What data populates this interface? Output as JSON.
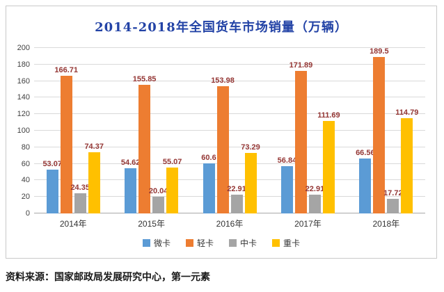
{
  "chart_data": {
    "type": "bar",
    "title": "2014-2018年全国货车市场销量（万辆）",
    "title_color": "#2343A6",
    "categories": [
      "2014年",
      "2015年",
      "2016年",
      "2017年",
      "2018年"
    ],
    "series": [
      {
        "name": "微卡",
        "color": "#5B9BD5",
        "values": [
          53.07,
          54.62,
          60.6,
          56.84,
          66.56
        ]
      },
      {
        "name": "轻卡",
        "color": "#ED7D31",
        "values": [
          166.71,
          155.85,
          153.98,
          171.89,
          189.5
        ]
      },
      {
        "name": "中卡",
        "color": "#A5A5A5",
        "values": [
          24.35,
          20.04,
          22.91,
          22.91,
          17.72
        ]
      },
      {
        "name": "重卡",
        "color": "#FFC000",
        "values": [
          74.37,
          55.07,
          73.29,
          111.69,
          114.79
        ]
      }
    ],
    "ylim": [
      0,
      200
    ],
    "ytick_step": 20,
    "grid": true,
    "legend_position": "bottom",
    "value_label_color": "#943634"
  },
  "source": "资料来源：国家邮政局发展研究中心，第一元素"
}
